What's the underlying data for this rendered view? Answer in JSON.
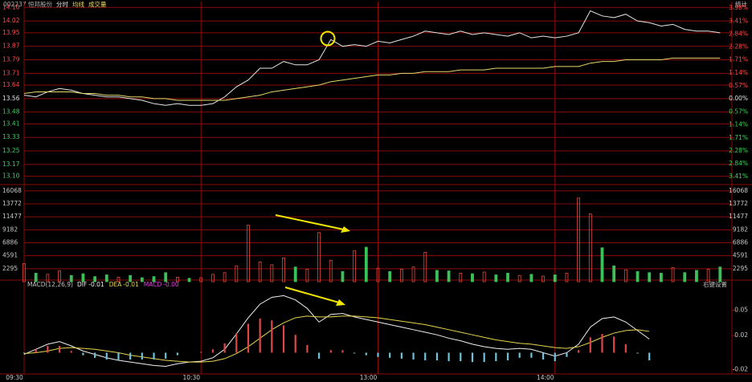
{
  "chart_data": [
    {
      "type": "line",
      "title": "002237 恒邦股份",
      "stats_button": "统计",
      "grid_color": "#8c0a0a",
      "up_color": "#ff4a4a",
      "down_color": "#3cd05a",
      "flat_color": "#e0e0e0",
      "x": [
        0,
        4,
        8,
        12,
        16,
        20,
        24,
        28,
        32,
        36,
        40,
        44,
        48,
        52,
        56,
        60,
        64,
        68,
        72,
        76,
        80,
        84,
        88,
        92,
        96,
        100,
        104,
        108,
        112,
        116,
        120,
        124,
        128,
        132,
        136,
        140,
        144,
        148,
        152,
        156,
        160,
        164,
        168,
        172,
        176,
        180,
        184,
        188,
        192,
        196,
        200,
        204,
        208,
        212,
        216,
        220,
        224,
        228,
        232,
        236
      ],
      "xlim": [
        0,
        240
      ],
      "ylim": [
        13.06,
        14.13
      ],
      "yticks": [
        {
          "value": 14.1,
          "label": "14.10"
        },
        14.02,
        13.95,
        13.87,
        13.79,
        13.71,
        13.64,
        13.56,
        13.48,
        13.41,
        13.33,
        13.25,
        13.17,
        {
          "value": 13.1,
          "label": "13.10"
        }
      ],
      "y2lim": [
        -3.69,
        4.23
      ],
      "y2ticks": [
        {
          "value": 3.98,
          "label": "3.98%"
        },
        {
          "value": 3.41,
          "label": "3.41%"
        },
        {
          "value": 2.84,
          "label": "2.84%"
        },
        {
          "value": 2.28,
          "label": "2.28%"
        },
        {
          "value": 1.71,
          "label": "1.71%"
        },
        {
          "value": 1.14,
          "label": "1.14%"
        },
        {
          "value": 0.57,
          "label": "0.57%"
        },
        {
          "value": 0,
          "label": "0.00%"
        },
        {
          "value": -0.57,
          "label": "0.57%"
        },
        {
          "value": -1.14,
          "label": "1.14%"
        },
        {
          "value": -1.71,
          "label": "1.71%"
        },
        {
          "value": -2.28,
          "label": "2.28%"
        },
        {
          "value": -2.84,
          "label": "2.84%"
        },
        {
          "value": -3.41,
          "label": "3.41%"
        }
      ],
      "series": [
        {
          "name": "分时",
          "color": "#e6e6e6",
          "values": [
            13.58,
            13.57,
            13.6,
            13.62,
            13.61,
            13.59,
            13.58,
            13.57,
            13.57,
            13.56,
            13.55,
            13.53,
            13.52,
            13.53,
            13.52,
            13.52,
            13.53,
            13.57,
            13.63,
            13.67,
            13.74,
            13.74,
            13.78,
            13.76,
            13.76,
            13.79,
            13.91,
            13.87,
            13.88,
            13.87,
            13.9,
            13.89,
            13.91,
            13.93,
            13.96,
            13.95,
            13.94,
            13.96,
            13.94,
            13.95,
            13.94,
            13.93,
            13.95,
            13.92,
            13.93,
            13.92,
            13.93,
            13.95,
            14.08,
            14.05,
            14.04,
            14.06,
            14.02,
            14.01,
            13.99,
            14.0,
            13.97,
            13.96,
            13.96,
            13.95
          ]
        },
        {
          "name": "均线",
          "color": "#e8d86a",
          "values": [
            13.59,
            13.6,
            13.6,
            13.6,
            13.6,
            13.59,
            13.59,
            13.58,
            13.58,
            13.57,
            13.57,
            13.56,
            13.56,
            13.55,
            13.55,
            13.55,
            13.55,
            13.55,
            13.56,
            13.57,
            13.58,
            13.6,
            13.61,
            13.62,
            13.63,
            13.64,
            13.66,
            13.67,
            13.68,
            13.69,
            13.7,
            13.7,
            13.71,
            13.71,
            13.72,
            13.72,
            13.72,
            13.73,
            13.73,
            13.73,
            13.74,
            13.74,
            13.74,
            13.74,
            13.74,
            13.75,
            13.75,
            13.75,
            13.77,
            13.78,
            13.78,
            13.79,
            13.79,
            13.79,
            13.79,
            13.8,
            13.8,
            13.8,
            13.8,
            13.8
          ]
        }
      ]
    },
    {
      "type": "bar",
      "grid_color": "#8c0a0a",
      "x": [
        0,
        4,
        8,
        12,
        16,
        20,
        24,
        28,
        32,
        36,
        40,
        44,
        48,
        52,
        56,
        60,
        64,
        68,
        72,
        76,
        80,
        84,
        88,
        92,
        96,
        100,
        104,
        108,
        112,
        116,
        120,
        124,
        128,
        132,
        136,
        140,
        144,
        148,
        152,
        156,
        160,
        164,
        168,
        172,
        176,
        180,
        184,
        188,
        192,
        196,
        200,
        204,
        208,
        212,
        216,
        220,
        224,
        228,
        232,
        236
      ],
      "xlim": [
        0,
        240
      ],
      "ylim": [
        0,
        16900
      ],
      "yticks": [
        16068,
        13772,
        11477,
        9182,
        6886,
        4591,
        2295
      ],
      "series": [
        {
          "name": "成交量",
          "color": "#e8d86a",
          "up_color": "#e8473f",
          "down_color": "#3cc05a",
          "values": [
            3200,
            1500,
            1300,
            1900,
            1100,
            1400,
            900,
            1200,
            800,
            1100,
            700,
            900,
            1600,
            800,
            600,
            700,
            1300,
            1600,
            2800,
            10000,
            3500,
            3000,
            4200,
            2600,
            2200,
            8700,
            3800,
            1800,
            5500,
            6100,
            2400,
            1800,
            2200,
            2600,
            5200,
            2000,
            1900,
            1500,
            1400,
            1700,
            1200,
            1500,
            1100,
            1300,
            1000,
            1200,
            1500,
            14800,
            12000,
            6000,
            2800,
            2100,
            1800,
            1600,
            1500,
            2500,
            1600,
            2000,
            2200,
            2600
          ]
        }
      ]
    },
    {
      "type": "macd",
      "title": "MACD(12,26,9)",
      "settings_button": "右键设置",
      "grid_color": "#8c0a0a",
      "x": [
        0,
        4,
        8,
        12,
        16,
        20,
        24,
        28,
        32,
        36,
        40,
        44,
        48,
        52,
        56,
        60,
        64,
        68,
        72,
        76,
        80,
        84,
        88,
        92,
        96,
        100,
        104,
        108,
        112,
        116,
        120,
        124,
        128,
        132,
        136,
        140,
        144,
        148,
        152,
        156,
        160,
        164,
        168,
        172,
        176,
        180,
        184,
        188,
        192,
        196,
        200,
        204,
        208,
        212,
        216,
        220,
        224,
        228,
        232,
        236
      ],
      "xlim": [
        0,
        240
      ],
      "xticks": [
        {
          "value": 0,
          "label": "09:30"
        },
        {
          "value": 60,
          "label": "10:30"
        },
        {
          "value": 120,
          "label": "13:00"
        },
        {
          "value": 180,
          "label": "14:00"
        }
      ],
      "ylim": [
        -0.025,
        0.073
      ],
      "yticks": [
        0.05,
        0.02,
        -0.02
      ],
      "series": [
        {
          "name": "DIF",
          "current": "-0.01",
          "color": "#f0f0f0",
          "values": [
            -0.002,
            0.004,
            0.01,
            0.013,
            0.008,
            0.002,
            -0.002,
            -0.006,
            -0.009,
            -0.011,
            -0.013,
            -0.015,
            -0.016,
            -0.013,
            -0.011,
            -0.01,
            -0.006,
            0.004,
            0.022,
            0.041,
            0.057,
            0.065,
            0.067,
            0.062,
            0.052,
            0.036,
            0.045,
            0.046,
            0.042,
            0.039,
            0.036,
            0.033,
            0.03,
            0.027,
            0.024,
            0.021,
            0.017,
            0.014,
            0.01,
            0.007,
            0.005,
            0.004,
            0.005,
            0.004,
            0,
            -0.004,
            0,
            0.01,
            0.03,
            0.04,
            0.042,
            0.036,
            0.026,
            0.016,
            null,
            null,
            null,
            null,
            null,
            null
          ]
        },
        {
          "name": "DEA",
          "current": "-0.01",
          "color": "#e8d44d",
          "values": [
            -0.001,
            0,
            0.002,
            0.005,
            0.006,
            0.005,
            0.004,
            0.002,
            0,
            -0.003,
            -0.005,
            -0.007,
            -0.009,
            -0.01,
            -0.011,
            -0.011,
            -0.01,
            -0.007,
            -0.001,
            0.007,
            0.017,
            0.027,
            0.035,
            0.041,
            0.043,
            0.042,
            0.042,
            0.043,
            0.043,
            0.042,
            0.041,
            0.039,
            0.037,
            0.035,
            0.033,
            0.03,
            0.027,
            0.024,
            0.021,
            0.018,
            0.015,
            0.013,
            0.011,
            0.01,
            0.008,
            0.006,
            0.005,
            0.007,
            0.012,
            0.018,
            0.023,
            0.026,
            0.027,
            0.025,
            null,
            null,
            null,
            null,
            null,
            null
          ]
        },
        {
          "name": "MACD",
          "current": "-0.00",
          "style": "bar",
          "color": "#e04848",
          "negative_color": "#6ec3d8",
          "legend_color": "#e040e0",
          "values": [
            -0.001,
            0.004,
            0.008,
            0.008,
            0.002,
            -0.003,
            -0.006,
            -0.008,
            -0.009,
            -0.008,
            -0.008,
            -0.008,
            -0.007,
            -0.003,
            0,
            0.001,
            0.004,
            0.011,
            0.023,
            0.034,
            0.04,
            0.038,
            0.032,
            0.021,
            0.009,
            -0.007,
            0.003,
            0.003,
            -0.001,
            -0.003,
            -0.005,
            -0.006,
            -0.007,
            -0.008,
            -0.009,
            -0.009,
            -0.01,
            -0.01,
            -0.011,
            -0.011,
            -0.01,
            -0.009,
            -0.006,
            -0.006,
            -0.008,
            -0.01,
            -0.005,
            0.003,
            0.018,
            0.022,
            0.019,
            0.01,
            -0.001,
            -0.009,
            null,
            null,
            null,
            null,
            null,
            null
          ]
        }
      ]
    }
  ]
}
